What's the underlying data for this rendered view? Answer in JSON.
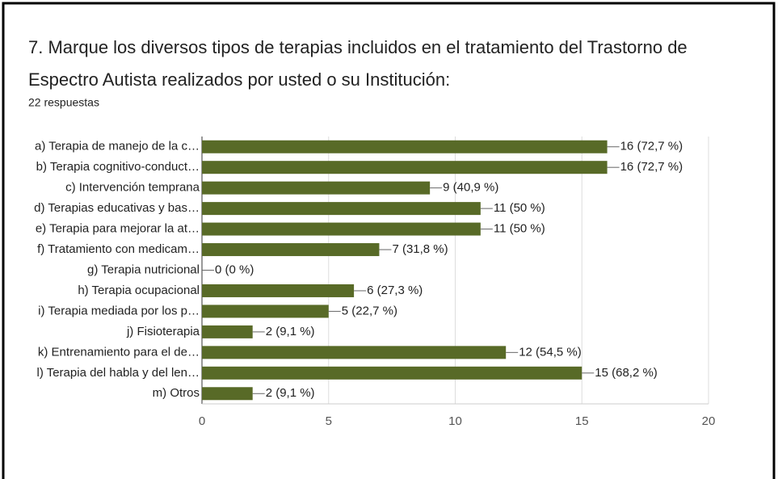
{
  "chart_data": {
    "type": "bar",
    "orientation": "horizontal",
    "title": "7. Marque los diversos tipos de terapias incluidos en el tratamiento del Trastorno de Espectro Autista realizados por usted o su Institución:",
    "subtitle": "22 respuestas",
    "categories": [
      "a) Terapia de manejo de la c…",
      "b) Terapia cognitivo-conduct…",
      "c) Intervención temprana",
      "d) Terapias educativas y bas…",
      "e) Terapia para mejorar la at…",
      "f) Tratamiento con medicam…",
      "g) Terapia nutricional",
      "h) Terapia ocupacional",
      "i) Terapia mediada por los p…",
      "j) Fisioterapia",
      "k) Entrenamiento para el de…",
      "l) Terapia del habla y del len…",
      "m) Otros"
    ],
    "values": [
      16,
      16,
      9,
      11,
      11,
      7,
      0,
      6,
      5,
      2,
      12,
      15,
      2
    ],
    "value_labels": [
      "16 (72,7 %)",
      "16 (72,7 %)",
      "9 (40,9 %)",
      "11 (50 %)",
      "11 (50 %)",
      "7 (31,8 %)",
      "0 (0 %)",
      "6 (27,3 %)",
      "5 (22,7 %)",
      "2 (9,1 %)",
      "12 (54,5 %)",
      "15 (68,2 %)",
      "2 (9,1 %)"
    ],
    "color": "#586a27",
    "xlim": [
      0,
      20
    ],
    "xticks": [
      0,
      5,
      10,
      15,
      20
    ],
    "grid": true
  }
}
